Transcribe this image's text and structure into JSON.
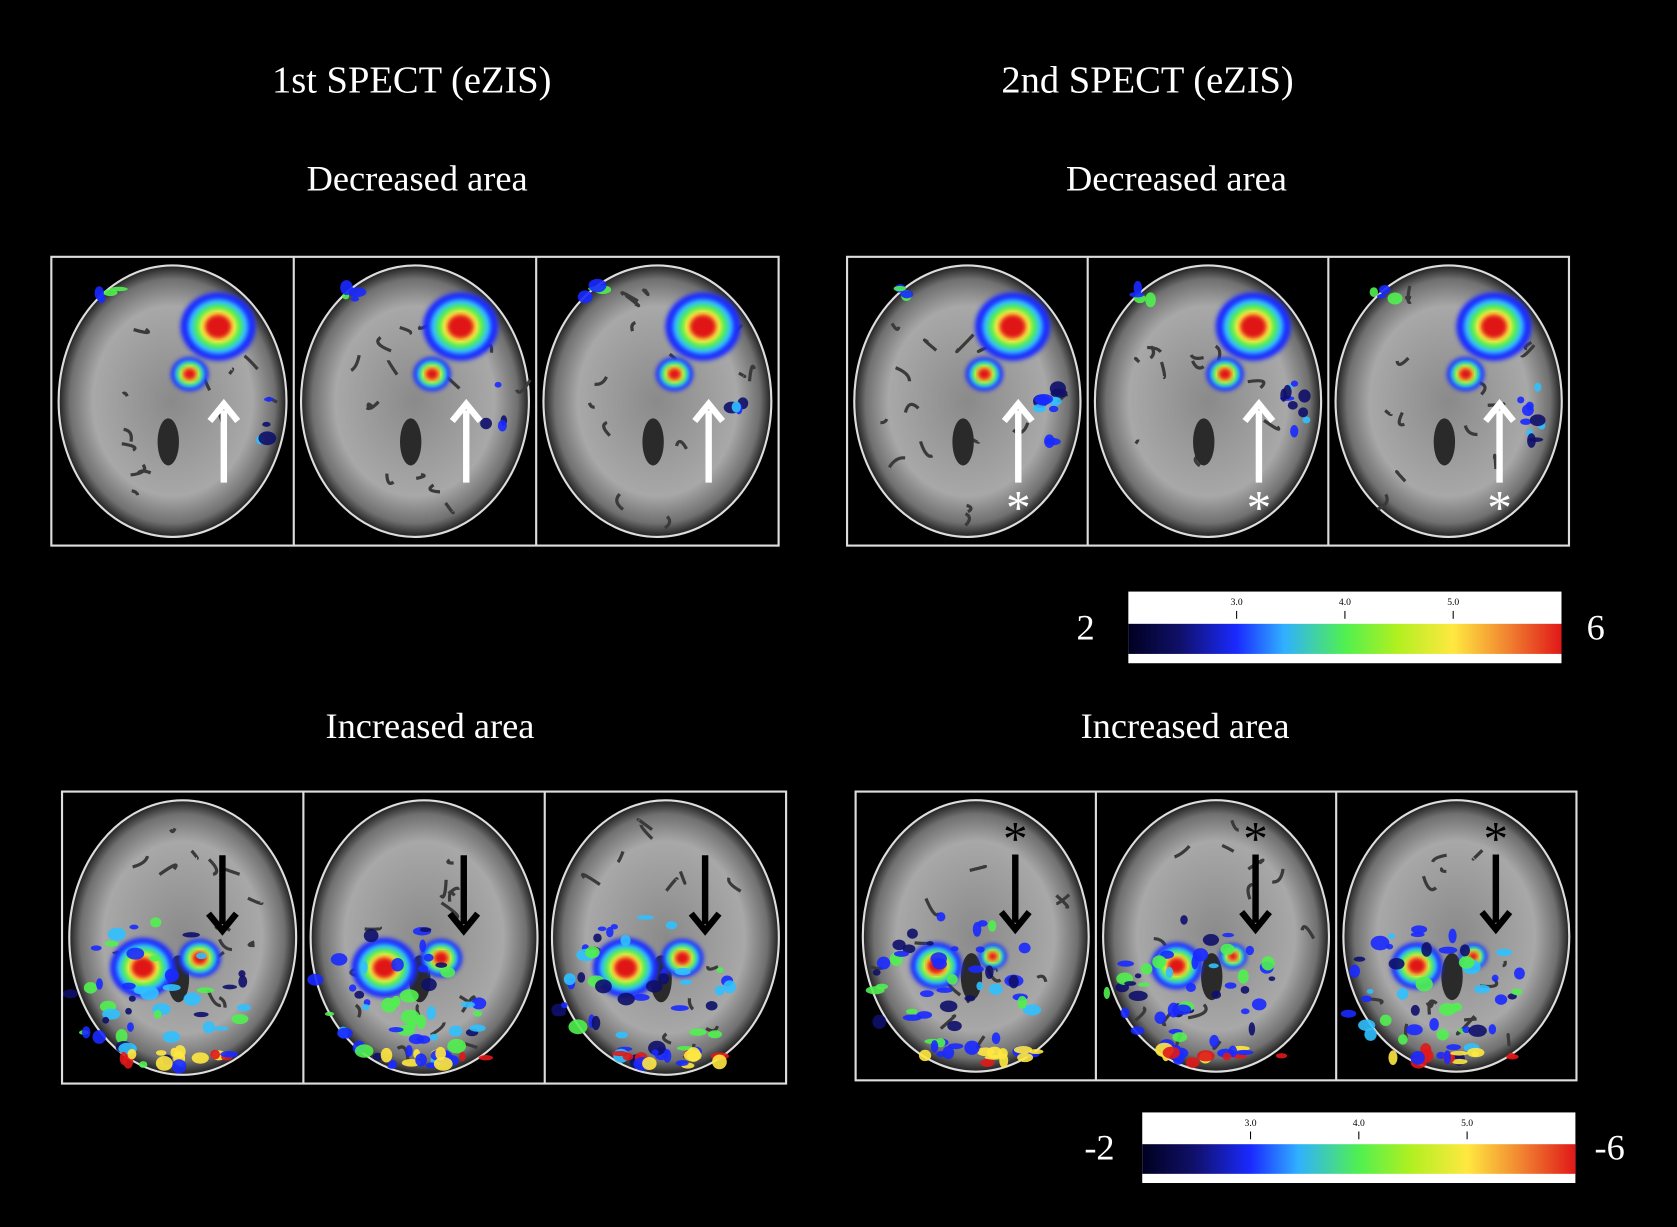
{
  "panels": [
    {
      "title": "1st SPECT (eZIS)",
      "decreased_label": "Decreased area",
      "increased_label": "Increased area"
    },
    {
      "title": "2nd SPECT (eZIS)",
      "decreased_label": "Decreased area",
      "increased_label": "Increased area"
    }
  ],
  "colorbars": [
    {
      "min_label": "2",
      "max_label": "6",
      "ticks": [
        "3.0",
        "4.0",
        "5.0"
      ]
    },
    {
      "min_label": "-2",
      "max_label": "-6",
      "ticks": [
        "3.0",
        "4.0",
        "5.0"
      ]
    }
  ],
  "asterisk": "*"
}
